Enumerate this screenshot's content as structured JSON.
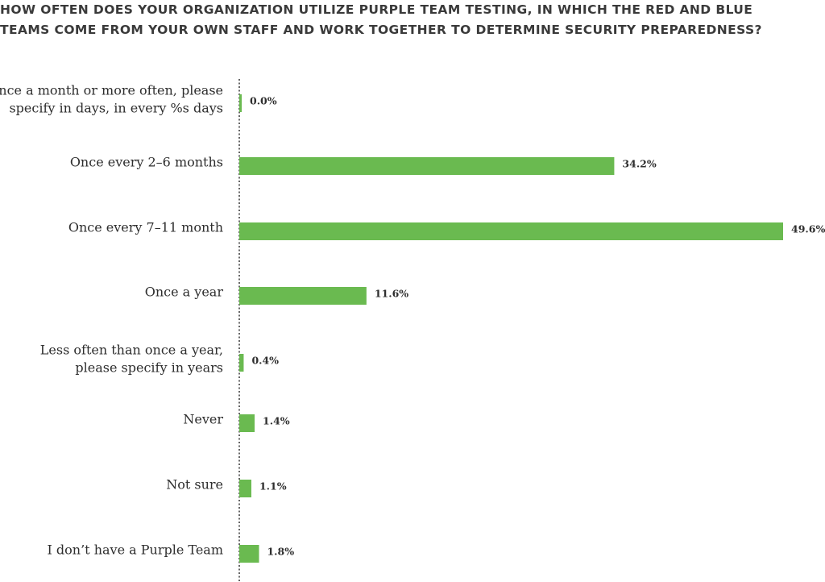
{
  "chart_data": {
    "type": "bar",
    "orientation": "horizontal",
    "title": "HOW OFTEN DOES YOUR ORGANIZATION UTILIZE PURPLE TEAM TESTING, IN WHICH THE RED AND BLUE TEAMS COME FROM YOUR OWN STAFF AND WORK TOGETHER TO DETERMINE SECURITY PREPAREDNESS?",
    "categories": [
      [
        "Once a month or more often, please",
        "specify in  days, in every %s days"
      ],
      [
        "Once every 2–6 months"
      ],
      [
        "Once every 7–11 month"
      ],
      [
        "Once a year"
      ],
      [
        "Less often than once a year,",
        "please specify in years"
      ],
      [
        "Never"
      ],
      [
        "Not sure"
      ],
      [
        "I don’t have a Purple Team"
      ]
    ],
    "values": [
      0.0,
      34.2,
      49.6,
      11.6,
      0.4,
      1.4,
      1.1,
      1.8
    ],
    "value_labels": [
      "0.0%",
      "34.2%",
      "49.6%",
      "11.6%",
      "0.4%",
      "1.4%",
      "1.1%",
      "1.8%"
    ],
    "xlim": [
      0,
      49.6
    ],
    "colors": {
      "bar": "#6aba50",
      "text": "#2e2e2e"
    },
    "grid": false,
    "legend": "none"
  }
}
